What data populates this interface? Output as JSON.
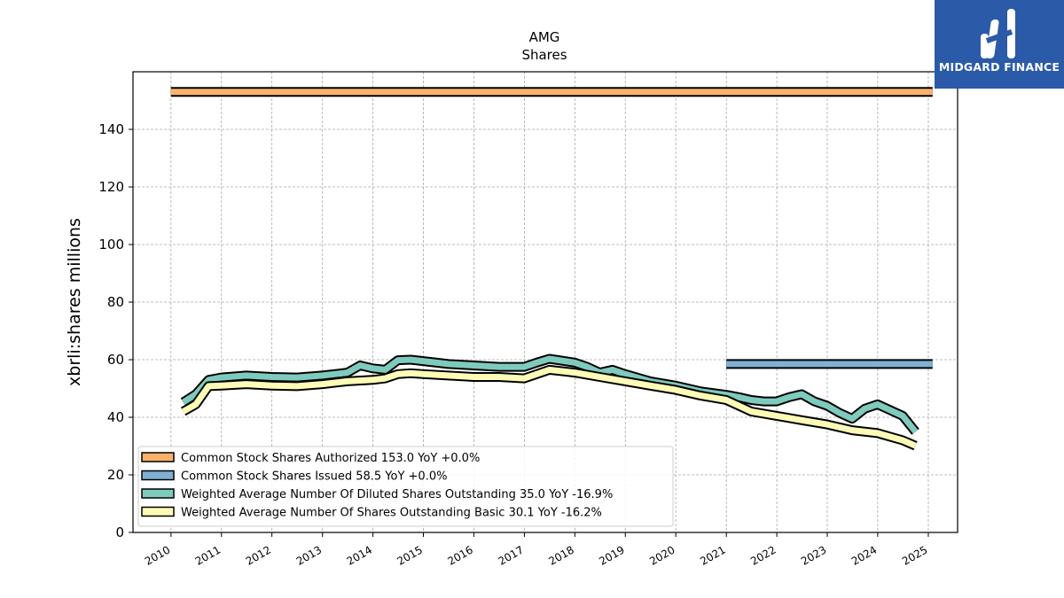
{
  "chart_data": {
    "type": "line",
    "title": "AMG",
    "subtitle": "Shares",
    "xlabel": "",
    "ylabel": "xbrli:shares millions",
    "xlim": [
      "2009-04-01",
      "2025-08-01"
    ],
    "ylim": [
      0,
      160
    ],
    "y_ticks": [
      0,
      20,
      40,
      60,
      80,
      100,
      120,
      140
    ],
    "x_ticks": [
      "2010",
      "2011",
      "2012",
      "2013",
      "2014",
      "2015",
      "2016",
      "2017",
      "2018",
      "2019",
      "2020",
      "2021",
      "2022",
      "2023",
      "2024",
      "2025"
    ],
    "grid": true,
    "legend_position": "bottom-left",
    "series": [
      {
        "name": "Common Stock Shares Authorized",
        "legend_label": "Common Stock Shares Authorized  153.0 YoY +0.0%",
        "color": "#f8b26a",
        "x": [
          "2009-12-31",
          "2025-02-01"
        ],
        "values": [
          153.0,
          153.0
        ]
      },
      {
        "name": "Common Stock Shares Issued",
        "legend_label": "Common Stock Shares Issued  58.5 YoY +0.0%",
        "color": "#7fb0d4",
        "x": [
          "2020-12-31",
          "2025-02-01"
        ],
        "values": [
          58.5,
          58.5
        ]
      },
      {
        "name": "Weighted Average Number Of Diluted Shares Outstanding",
        "legend_label": "Weighted Average Number Of Diluted Shares Outstanding  35.0 YoY -16.9%",
        "color": "#7ecbbd",
        "x": [
          "2010-03-31",
          "2010-06-30",
          "2010-09-30",
          "2010-12-31",
          "2011-06-30",
          "2011-12-31",
          "2012-06-30",
          "2012-12-31",
          "2013-06-30",
          "2013-09-30",
          "2013-12-31",
          "2014-03-31",
          "2014-06-30",
          "2014-09-30",
          "2014-12-31",
          "2015-06-30",
          "2015-12-31",
          "2016-06-30",
          "2016-09-30",
          "2016-12-31",
          "2017-03-31",
          "2017-06-30",
          "2017-12-31",
          "2018-03-31",
          "2018-06-30",
          "2018-09-30",
          "2018-12-31",
          "2019-06-30",
          "2019-12-31",
          "2020-06-30",
          "2020-12-31",
          "2021-03-31",
          "2021-06-30",
          "2021-09-30",
          "2021-12-31",
          "2022-03-31",
          "2022-06-30",
          "2022-09-30",
          "2022-12-31",
          "2023-03-31",
          "2023-06-30",
          "2023-09-30",
          "2023-12-31",
          "2024-03-31",
          "2024-06-30",
          "2024-09-30"
        ],
        "values": [
          45.2,
          48.0,
          53.0,
          53.8,
          54.5,
          54.0,
          53.8,
          54.5,
          55.5,
          58.0,
          57.0,
          56.5,
          59.8,
          60.0,
          59.5,
          58.5,
          58.0,
          57.5,
          57.5,
          57.5,
          59.0,
          60.3,
          59.0,
          57.5,
          55.5,
          56.5,
          55.0,
          52.5,
          51.0,
          49.0,
          47.8,
          47.0,
          46.0,
          45.5,
          45.5,
          47.0,
          48.0,
          45.5,
          44.0,
          41.5,
          39.5,
          43.0,
          44.5,
          42.5,
          40.5,
          35.0
        ]
      },
      {
        "name": "Weighted Average Number Of Shares Outstanding Basic",
        "legend_label": "Weighted Average Number Of Shares Outstanding Basic  30.1 YoY -16.2%",
        "color": "#fdfbb6",
        "x": [
          "2010-03-31",
          "2010-06-30",
          "2010-09-30",
          "2010-12-31",
          "2011-06-30",
          "2011-12-31",
          "2012-06-30",
          "2012-12-31",
          "2013-06-30",
          "2013-12-31",
          "2014-03-31",
          "2014-06-30",
          "2014-09-30",
          "2014-12-31",
          "2015-06-30",
          "2015-12-31",
          "2016-06-30",
          "2016-12-31",
          "2017-03-31",
          "2017-06-30",
          "2017-12-31",
          "2018-06-30",
          "2018-12-31",
          "2019-06-30",
          "2019-12-31",
          "2020-06-30",
          "2020-12-31",
          "2021-06-30",
          "2021-12-31",
          "2022-06-30",
          "2022-12-31",
          "2023-06-30",
          "2023-12-31",
          "2024-06-30",
          "2024-09-30"
        ],
        "values": [
          42.0,
          44.5,
          50.8,
          51.0,
          51.5,
          51.0,
          50.8,
          51.5,
          52.5,
          53.0,
          53.5,
          55.0,
          55.3,
          55.0,
          54.5,
          54.0,
          54.0,
          53.5,
          55.0,
          56.5,
          55.5,
          54.0,
          52.5,
          51.0,
          49.5,
          47.5,
          46.0,
          42.0,
          40.5,
          39.0,
          37.5,
          35.5,
          34.5,
          32.0,
          30.1
        ]
      }
    ]
  },
  "logo": {
    "text": "MIDGARD FINANCE",
    "background": "#2b5aa8"
  }
}
